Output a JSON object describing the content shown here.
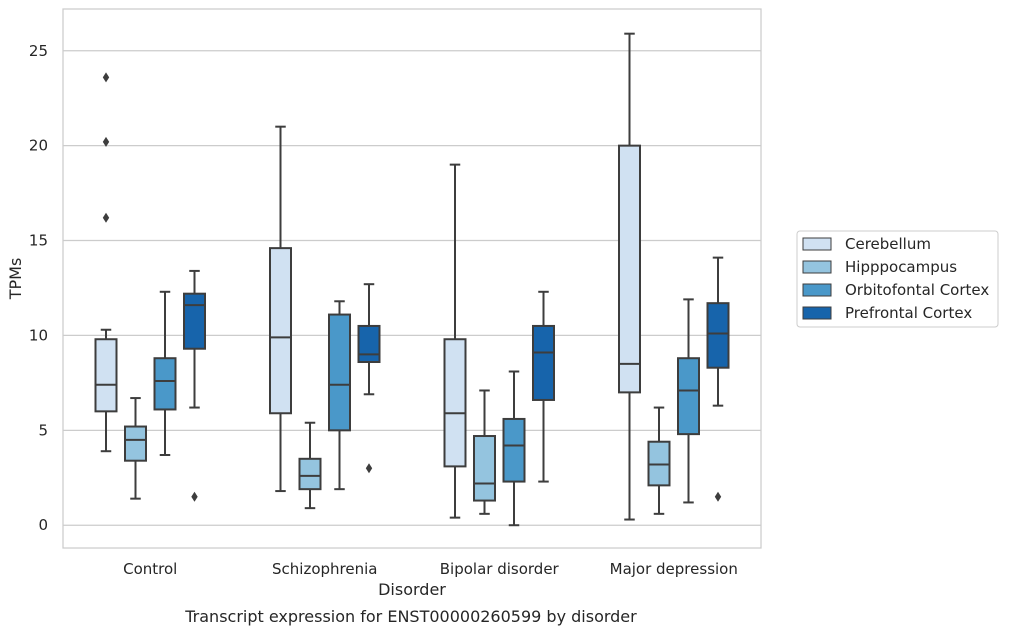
{
  "chart_data": {
    "type": "box",
    "caption": "Transcript expression for ENST00000260599 by disorder",
    "xlabel": "Disorder",
    "ylabel": "TPMs",
    "ylim": [
      -1.2,
      27.2
    ],
    "yticks": [
      0,
      5,
      10,
      15,
      20,
      25
    ],
    "grid": "horizontal",
    "legend_position": "right",
    "categories": [
      "Control",
      "Schizophrenia",
      "Bipolar disorder",
      "Major depression"
    ],
    "series": [
      {
        "name": "Cerebellum",
        "color": "#d0e1f2",
        "boxes": [
          {
            "category": "Control",
            "whisker_low": 3.9,
            "q1": 6.0,
            "median": 7.4,
            "q3": 9.8,
            "whisker_high": 10.3,
            "outliers": [
              16.2,
              20.2,
              23.6
            ]
          },
          {
            "category": "Schizophrenia",
            "whisker_low": 1.8,
            "q1": 5.9,
            "median": 9.9,
            "q3": 14.6,
            "whisker_high": 21.0,
            "outliers": []
          },
          {
            "category": "Bipolar disorder",
            "whisker_low": 0.4,
            "q1": 3.1,
            "median": 5.9,
            "q3": 9.8,
            "whisker_high": 19.0,
            "outliers": []
          },
          {
            "category": "Major depression",
            "whisker_low": 0.3,
            "q1": 7.0,
            "median": 8.5,
            "q3": 20.0,
            "whisker_high": 25.9,
            "outliers": []
          }
        ]
      },
      {
        "name": "Hipppocampus",
        "color": "#94c4df",
        "boxes": [
          {
            "category": "Control",
            "whisker_low": 1.4,
            "q1": 3.4,
            "median": 4.5,
            "q3": 5.2,
            "whisker_high": 6.7,
            "outliers": []
          },
          {
            "category": "Schizophrenia",
            "whisker_low": 0.9,
            "q1": 1.9,
            "median": 2.6,
            "q3": 3.5,
            "whisker_high": 5.4,
            "outliers": []
          },
          {
            "category": "Bipolar disorder",
            "whisker_low": 0.6,
            "q1": 1.3,
            "median": 2.2,
            "q3": 4.7,
            "whisker_high": 7.1,
            "outliers": []
          },
          {
            "category": "Major depression",
            "whisker_low": 0.6,
            "q1": 2.1,
            "median": 3.2,
            "q3": 4.4,
            "whisker_high": 6.2,
            "outliers": []
          }
        ]
      },
      {
        "name": "Orbitofontal Cortex",
        "color": "#4a98c9",
        "boxes": [
          {
            "category": "Control",
            "whisker_low": 3.7,
            "q1": 6.1,
            "median": 7.6,
            "q3": 8.8,
            "whisker_high": 12.3,
            "outliers": []
          },
          {
            "category": "Schizophrenia",
            "whisker_low": 1.9,
            "q1": 5.0,
            "median": 7.4,
            "q3": 11.1,
            "whisker_high": 11.8,
            "outliers": []
          },
          {
            "category": "Bipolar disorder",
            "whisker_low": 0.0,
            "q1": 2.3,
            "median": 4.2,
            "q3": 5.6,
            "whisker_high": 8.1,
            "outliers": []
          },
          {
            "category": "Major depression",
            "whisker_low": 1.2,
            "q1": 4.8,
            "median": 7.1,
            "q3": 8.8,
            "whisker_high": 11.9,
            "outliers": []
          }
        ]
      },
      {
        "name": "Prefrontal Cortex",
        "color": "#1764ab",
        "boxes": [
          {
            "category": "Control",
            "whisker_low": 6.2,
            "q1": 9.3,
            "median": 11.6,
            "q3": 12.2,
            "whisker_high": 13.4,
            "outliers": [
              1.5
            ]
          },
          {
            "category": "Schizophrenia",
            "whisker_low": 6.9,
            "q1": 8.6,
            "median": 9.0,
            "q3": 10.5,
            "whisker_high": 12.7,
            "outliers": [
              3.0
            ]
          },
          {
            "category": "Bipolar disorder",
            "whisker_low": 2.3,
            "q1": 6.6,
            "median": 9.1,
            "q3": 10.5,
            "whisker_high": 12.3,
            "outliers": []
          },
          {
            "category": "Major depression",
            "whisker_low": 6.3,
            "q1": 8.3,
            "median": 10.1,
            "q3": 11.7,
            "whisker_high": 14.1,
            "outliers": [
              1.5
            ]
          }
        ]
      }
    ]
  }
}
